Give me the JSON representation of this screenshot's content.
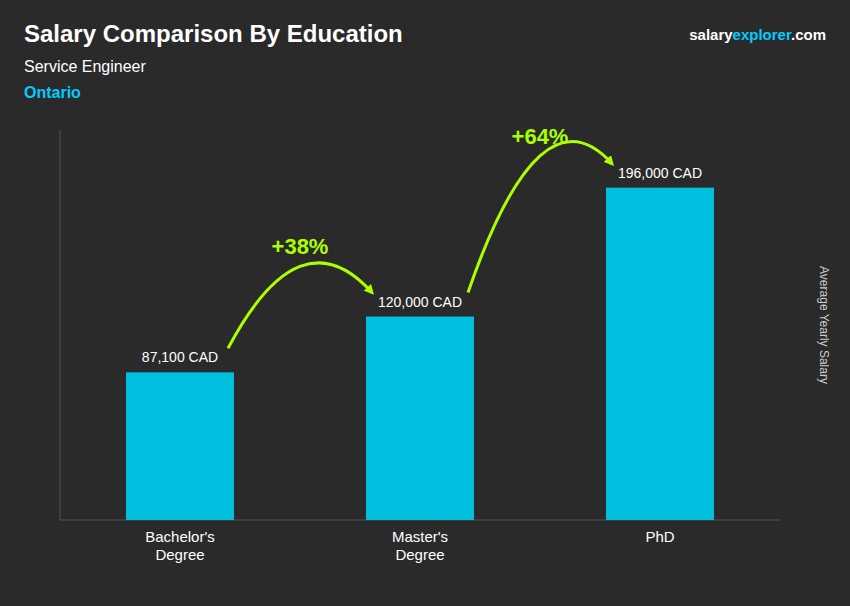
{
  "chart_data": {
    "type": "bar",
    "title": "Salary Comparison By Education",
    "subtitle": "Service Engineer",
    "region": "Ontario",
    "website": [
      "salary",
      "explorer",
      ".com"
    ],
    "y_label": "Average Yearly Salary",
    "categories": [
      "Bachelor's\nDegree",
      "Master's\nDegree",
      "PhD"
    ],
    "values": [
      87100,
      120000,
      196000
    ],
    "value_labels": [
      "87,100 CAD",
      "120,000 CAD",
      "196,000 CAD"
    ],
    "growth_labels": [
      "+38%",
      "+64%"
    ],
    "color": "#00bfdf",
    "ylim": [
      0,
      230000
    ],
    "data_labels": true,
    "tick_labels": false,
    "grid": false
  }
}
